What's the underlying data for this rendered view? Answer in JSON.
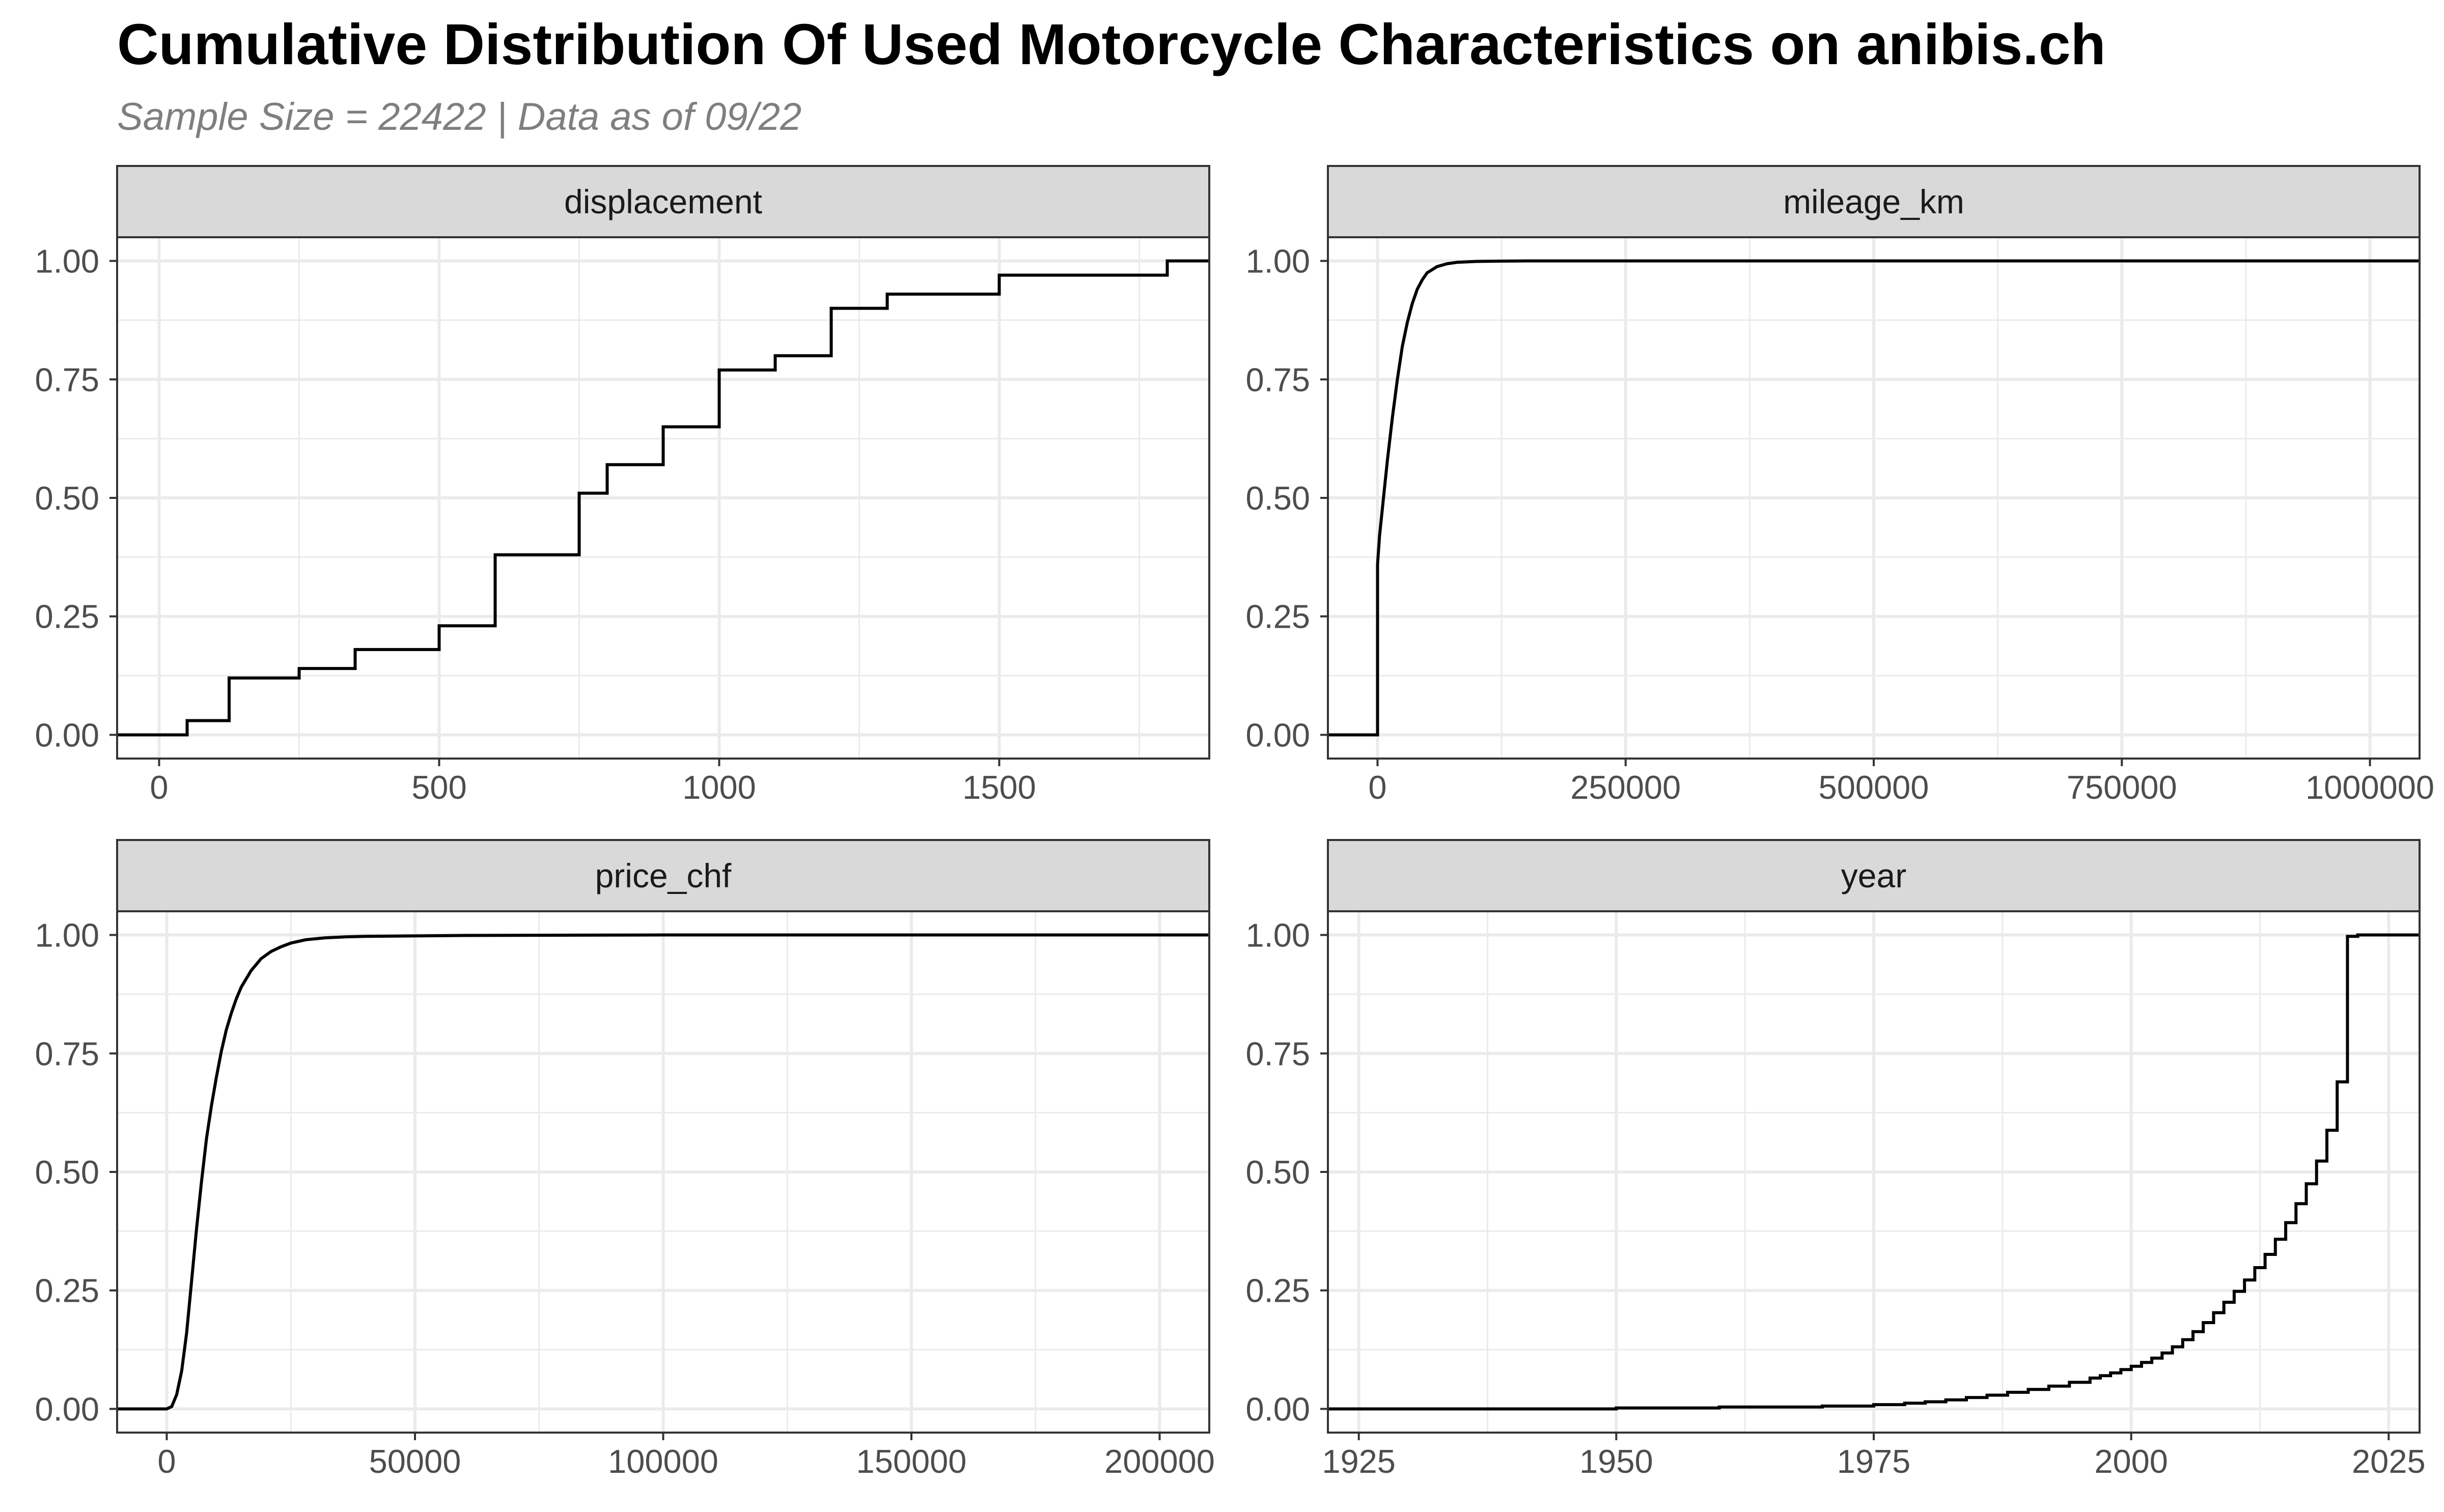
{
  "title": "Cumulative Distribution Of Used Motorcycle Characteristics on anibis.ch",
  "subtitle": "Sample Size = 22422 | Data as of 09/22",
  "colors": {
    "line": "#000000",
    "strip_fill": "#d9d9d9",
    "grid": "#ebebeb",
    "border": "#333333",
    "axis_text": "#4d4d4d",
    "subtitle": "#7f7f7f"
  },
  "chart_data": [
    {
      "type": "line",
      "panel": "displacement",
      "xlim": [
        -75,
        1875
      ],
      "ylim": [
        -0.05,
        1.05
      ],
      "xticks": [
        0,
        500,
        1000,
        1500
      ],
      "yticks": [
        0,
        0.25,
        0.5,
        0.75,
        1
      ],
      "ytick_labels": [
        "0.00",
        "0.25",
        "0.50",
        "0.75",
        "1.00"
      ],
      "grid": true,
      "step": true,
      "x": [
        -75,
        50,
        50,
        125,
        125,
        250,
        250,
        350,
        350,
        500,
        500,
        600,
        600,
        750,
        750,
        800,
        800,
        900,
        900,
        1000,
        1000,
        1100,
        1100,
        1200,
        1200,
        1300,
        1300,
        1500,
        1500,
        1800,
        1800,
        1875
      ],
      "y": [
        0.0,
        0.0,
        0.03,
        0.03,
        0.12,
        0.12,
        0.14,
        0.14,
        0.18,
        0.18,
        0.23,
        0.23,
        0.38,
        0.38,
        0.51,
        0.51,
        0.57,
        0.57,
        0.65,
        0.65,
        0.77,
        0.77,
        0.8,
        0.8,
        0.9,
        0.9,
        0.93,
        0.93,
        0.97,
        0.97,
        1.0,
        1.0
      ]
    },
    {
      "type": "line",
      "panel": "mileage_km",
      "xlim": [
        -50000,
        1050000
      ],
      "ylim": [
        -0.05,
        1.05
      ],
      "xticks": [
        0,
        250000,
        500000,
        750000,
        1000000
      ],
      "yticks": [
        0,
        0.25,
        0.5,
        0.75,
        1
      ],
      "ytick_labels": [
        "0.00",
        "0.25",
        "0.50",
        "0.75",
        "1.00"
      ],
      "grid": true,
      "step": false,
      "x": [
        -50000,
        0,
        0,
        2000,
        5000,
        10000,
        15000,
        20000,
        25000,
        30000,
        35000,
        40000,
        45000,
        50000,
        60000,
        70000,
        80000,
        90000,
        100000,
        120000,
        150000,
        200000,
        300000,
        1050000
      ],
      "y": [
        0.0,
        0.0,
        0.36,
        0.42,
        0.48,
        0.58,
        0.67,
        0.75,
        0.82,
        0.87,
        0.91,
        0.94,
        0.96,
        0.975,
        0.988,
        0.994,
        0.997,
        0.998,
        0.999,
        0.9995,
        1.0,
        1.0,
        1.0,
        1.0
      ]
    },
    {
      "type": "line",
      "panel": "price_chf",
      "xlim": [
        -10000,
        210000
      ],
      "ylim": [
        -0.05,
        1.05
      ],
      "xticks": [
        0,
        50000,
        100000,
        150000,
        200000
      ],
      "yticks": [
        0,
        0.25,
        0.5,
        0.75,
        1
      ],
      "ytick_labels": [
        "0.00",
        "0.25",
        "0.50",
        "0.75",
        "1.00"
      ],
      "grid": true,
      "step": false,
      "x": [
        -10000,
        0,
        1000,
        2000,
        3000,
        4000,
        5000,
        6000,
        7000,
        8000,
        9000,
        10000,
        11000,
        12000,
        13000,
        14000,
        15000,
        17000,
        19000,
        21000,
        23000,
        25000,
        28000,
        32000,
        36000,
        40000,
        50000,
        60000,
        80000,
        100000,
        150000,
        210000
      ],
      "y": [
        0.0,
        0.0,
        0.005,
        0.03,
        0.08,
        0.16,
        0.27,
        0.38,
        0.48,
        0.57,
        0.64,
        0.7,
        0.755,
        0.8,
        0.835,
        0.865,
        0.89,
        0.925,
        0.95,
        0.965,
        0.975,
        0.983,
        0.99,
        0.994,
        0.996,
        0.997,
        0.998,
        0.999,
        0.9995,
        1.0,
        1.0,
        1.0
      ]
    },
    {
      "type": "line",
      "panel": "year",
      "xlim": [
        1922,
        2028
      ],
      "ylim": [
        -0.05,
        1.05
      ],
      "xticks": [
        1925,
        1950,
        1975,
        2000,
        2025
      ],
      "yticks": [
        0,
        0.25,
        0.5,
        0.75,
        1
      ],
      "ytick_labels": [
        "0.00",
        "0.25",
        "0.50",
        "0.75",
        "1.00"
      ],
      "grid": true,
      "step": true,
      "x": [
        1922,
        1950,
        1960,
        1970,
        1975,
        1978,
        1980,
        1982,
        1984,
        1986,
        1988,
        1990,
        1992,
        1994,
        1996,
        1997,
        1998,
        1999,
        2000,
        2001,
        2002,
        2003,
        2004,
        2005,
        2006,
        2007,
        2008,
        2009,
        2010,
        2011,
        2012,
        2013,
        2014,
        2015,
        2016,
        2017,
        2018,
        2019,
        2020,
        2021,
        2022,
        2023,
        2028
      ],
      "y": [
        0.0,
        0.002,
        0.004,
        0.006,
        0.009,
        0.012,
        0.015,
        0.019,
        0.024,
        0.029,
        0.035,
        0.041,
        0.048,
        0.056,
        0.065,
        0.07,
        0.076,
        0.083,
        0.09,
        0.098,
        0.107,
        0.118,
        0.131,
        0.146,
        0.163,
        0.182,
        0.203,
        0.225,
        0.248,
        0.272,
        0.298,
        0.326,
        0.358,
        0.393,
        0.433,
        0.475,
        0.523,
        0.588,
        0.69,
        0.997,
        1.0,
        1.0,
        1.0
      ]
    }
  ]
}
